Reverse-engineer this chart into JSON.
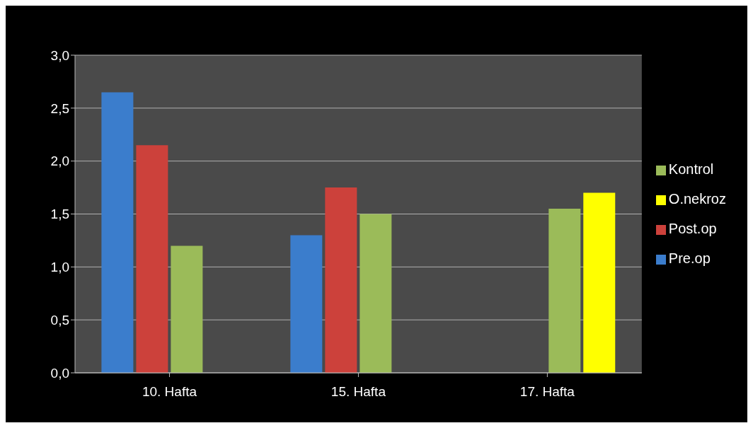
{
  "chart_data": {
    "type": "bar",
    "categories": [
      "10. Hafta",
      "15. Hafta",
      "17. Hafta"
    ],
    "series": [
      {
        "name": "Pre.op",
        "color": "#3b7dcc",
        "values": [
          2.65,
          1.3,
          null
        ]
      },
      {
        "name": "Post.op",
        "color": "#cc413b",
        "values": [
          2.15,
          1.75,
          null
        ]
      },
      {
        "name": "Kontrol",
        "color": "#9bbb59",
        "values": [
          1.2,
          1.5,
          1.55
        ]
      },
      {
        "name": "O.nekroz",
        "color": "#ffff00",
        "values": [
          null,
          null,
          1.7
        ]
      }
    ],
    "ylim": [
      0,
      3
    ],
    "yticks": [
      {
        "value": 0,
        "label": "0,0"
      },
      {
        "value": 0.5,
        "label": "0,5"
      },
      {
        "value": 1,
        "label": "1,0"
      },
      {
        "value": 1.5,
        "label": "1,5"
      },
      {
        "value": 2,
        "label": "2,0"
      },
      {
        "value": 2.5,
        "label": "2,5"
      },
      {
        "value": 3,
        "label": "3,0"
      }
    ],
    "grid": "y",
    "legend": "right"
  }
}
